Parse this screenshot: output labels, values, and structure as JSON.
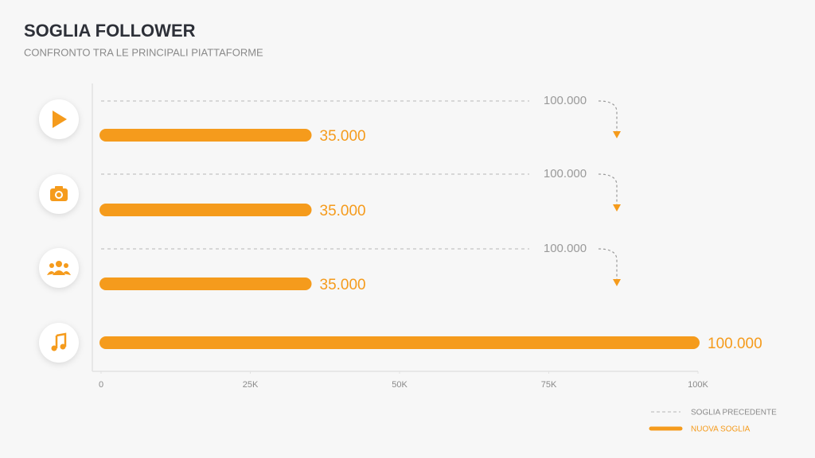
{
  "chart_data": {
    "type": "bar",
    "title": "SOGLIA FOLLOWER",
    "subtitle": "CONFRONTO TRA LE PRINCIPALI PIATTAFORME",
    "categories": [
      null,
      null,
      null,
      null
    ],
    "series": [
      {
        "name": "SOGLIA PRECEDENTE",
        "color": "#c4c4c4",
        "values": [
          100000,
          100000,
          100000,
          null
        ],
        "value_labels": [
          "100.000",
          "100.000",
          "100.000",
          null
        ]
      },
      {
        "name": "NUOVA SOGLIA",
        "color": "#f59b1c",
        "values": [
          35000,
          35000,
          35000,
          100000
        ],
        "value_labels": [
          "35.000",
          "35.000",
          "35.000",
          "100.000"
        ]
      }
    ],
    "xlim": [
      0,
      100000
    ],
    "xticks": [
      0,
      {
        "value": 25000,
        "label": "25K"
      },
      {
        "value": 50000,
        "label": "50K"
      },
      {
        "value": 75000,
        "label": "75K"
      },
      {
        "value": 100000,
        "label": "100K"
      }
    ],
    "legend": "bottom-right"
  }
}
